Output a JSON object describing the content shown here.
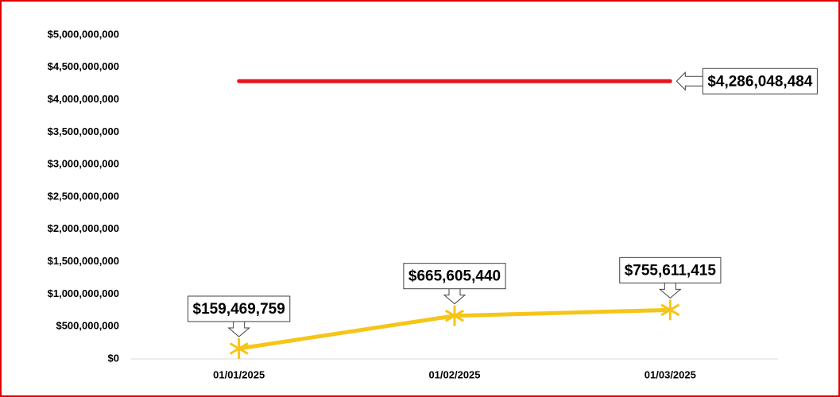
{
  "chart_data": {
    "type": "line",
    "categories": [
      "01/01/2025",
      "01/02/2025",
      "01/03/2025"
    ],
    "series": [
      {
        "color": "#e8161b",
        "values": [
          4286048484,
          4286048484,
          4286048484
        ],
        "value_labels": [
          null,
          null,
          "$4,286,048,484"
        ]
      },
      {
        "color": "#f5c518",
        "values": [
          159469759,
          665605440,
          755611415
        ],
        "value_labels": [
          "$159,469,759",
          "$665,605,440",
          "$755,611,415"
        ],
        "marker": "asterisk"
      }
    ],
    "ylim": [
      0,
      5000000000
    ],
    "yticks": [
      {
        "value": 0,
        "label": "$0"
      },
      {
        "value": 500000000,
        "label": "$500,000,000"
      },
      {
        "value": 1000000000,
        "label": "$1,000,000,000"
      },
      {
        "value": 1500000000,
        "label": "$1,500,000,000"
      },
      {
        "value": 2000000000,
        "label": "$2,000,000,000"
      },
      {
        "value": 2500000000,
        "label": "$2,500,000,000"
      },
      {
        "value": 3000000000,
        "label": "$3,000,000,000"
      },
      {
        "value": 3500000000,
        "label": "$3,500,000,000"
      },
      {
        "value": 4000000000,
        "label": "$4,000,000,000"
      },
      {
        "value": 4500000000,
        "label": "$4,500,000,000"
      },
      {
        "value": 5000000000,
        "label": "$5,000,000,000"
      }
    ],
    "grid": false
  }
}
